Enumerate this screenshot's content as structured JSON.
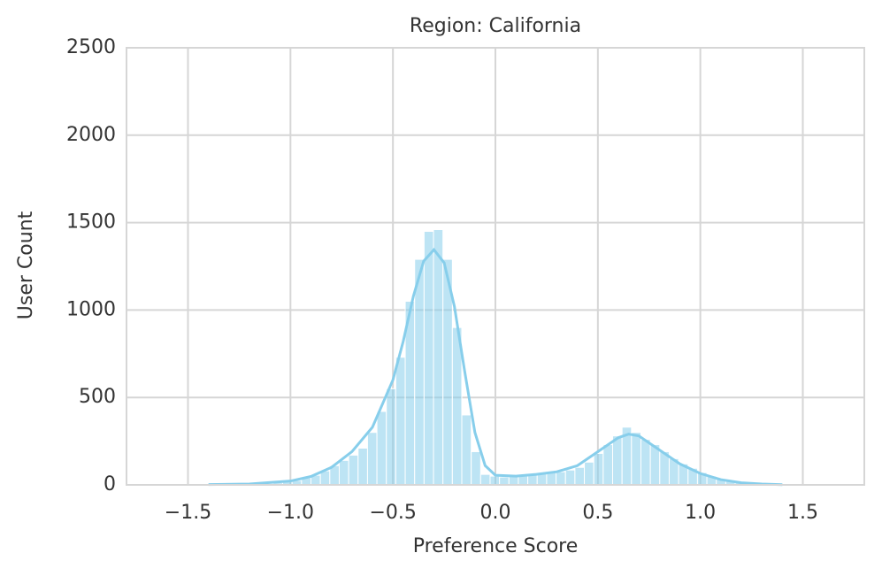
{
  "chart_data": {
    "type": "histogram",
    "title": "Region: California",
    "xlabel": "Preference Score",
    "ylabel": "User Count",
    "bins": [
      -1.36,
      -1.314,
      -1.268,
      -1.222,
      -1.176,
      -1.13,
      -1.084,
      -1.038,
      -0.992,
      -0.946,
      -0.9,
      -0.854,
      -0.808,
      -0.762,
      -0.716,
      -0.67,
      -0.624,
      -0.578,
      -0.532,
      -0.486,
      -0.44,
      -0.394,
      -0.348,
      -0.302,
      -0.256,
      -0.21,
      -0.164,
      -0.118,
      -0.072,
      -0.026,
      0.02,
      0.066,
      0.112,
      0.158,
      0.204,
      0.25,
      0.296,
      0.342,
      0.388,
      0.434,
      0.48,
      0.526,
      0.572,
      0.618,
      0.664,
      0.71,
      0.756,
      0.802,
      0.848,
      0.894,
      0.94,
      0.986,
      1.032,
      1.078,
      1.124,
      1.17,
      1.216,
      1.262,
      1.308,
      1.354,
      1.4
    ],
    "counts": [
      2,
      2,
      3,
      4,
      5,
      8,
      12,
      18,
      25,
      40,
      55,
      80,
      110,
      140,
      170,
      210,
      300,
      420,
      550,
      730,
      1050,
      1290,
      1450,
      1460,
      1290,
      900,
      400,
      190,
      60,
      50,
      45,
      50,
      55,
      60,
      65,
      70,
      75,
      85,
      100,
      130,
      180,
      230,
      280,
      330,
      300,
      260,
      230,
      190,
      150,
      120,
      95,
      70,
      50,
      35,
      25,
      15,
      10,
      6,
      4,
      2
    ],
    "color": "#87ceeb",
    "kde": {
      "x": [
        -1.4,
        -1.2,
        -1.0,
        -0.9,
        -0.8,
        -0.7,
        -0.6,
        -0.5,
        -0.45,
        -0.4,
        -0.35,
        -0.3,
        -0.25,
        -0.2,
        -0.15,
        -0.1,
        -0.05,
        0.0,
        0.1,
        0.2,
        0.3,
        0.4,
        0.5,
        0.6,
        0.65,
        0.7,
        0.8,
        0.9,
        1.0,
        1.1,
        1.2,
        1.3,
        1.4
      ],
      "values": [
        2,
        5,
        22,
        48,
        100,
        190,
        330,
        600,
        820,
        1080,
        1280,
        1345,
        1270,
        1020,
        650,
        300,
        110,
        55,
        50,
        60,
        75,
        110,
        190,
        270,
        290,
        280,
        200,
        120,
        65,
        30,
        12,
        5,
        1
      ]
    },
    "xlim": [
      -1.8,
      1.8
    ],
    "xticks": [
      {
        "value": -1.5,
        "label": "−1.5"
      },
      {
        "value": -1.0,
        "label": "−1.0"
      },
      {
        "value": -0.5,
        "label": "−0.5"
      },
      {
        "value": 0,
        "label": "0.0"
      },
      0.5,
      {
        "value": 1,
        "label": "1.0"
      },
      1.5
    ],
    "ylim": [
      0,
      2500
    ],
    "yticks": [
      0,
      500,
      1000,
      1500,
      2000,
      2500
    ],
    "grid": true
  }
}
